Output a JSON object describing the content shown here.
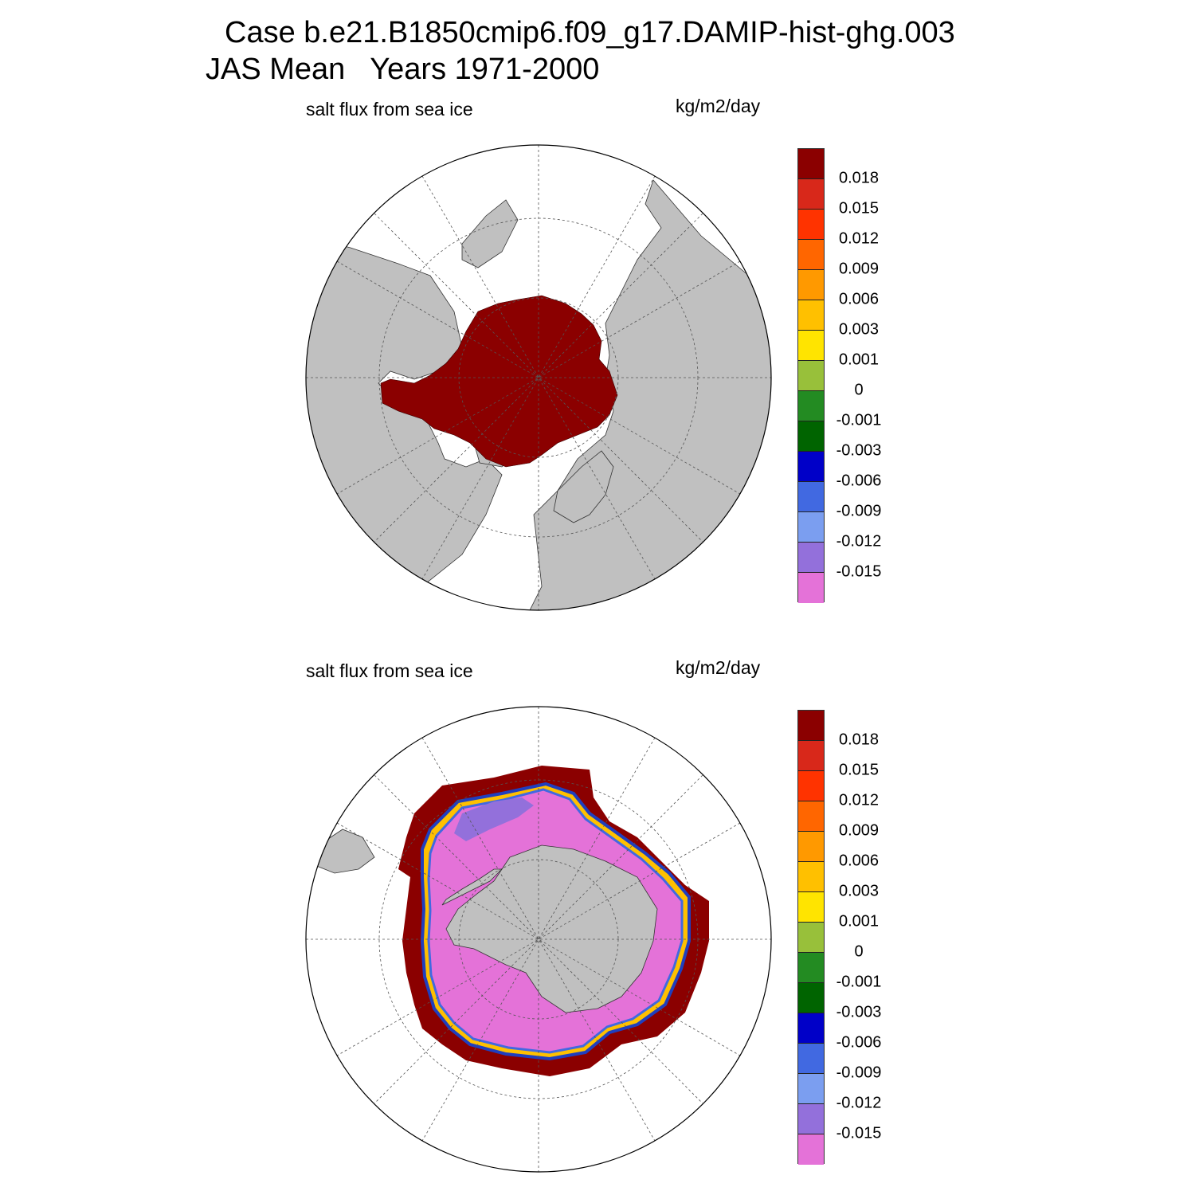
{
  "title": {
    "line1": "Case b.e21.B1850cmip6.f09_g17.DAMIP-hist-ghg.003",
    "line2": "JAS Mean   Years 1971-2000"
  },
  "panels": [
    {
      "hemisphere": "Northern Hemisphere",
      "variable": "salt flux from sea ice",
      "units": "kg/m2/day"
    },
    {
      "hemisphere": "Southern Hemisphere",
      "variable": "salt flux from sea ice",
      "units": "kg/m2/day"
    }
  ],
  "colorbar": {
    "labels": [
      "0.018",
      "0.015",
      "0.012",
      "0.009",
      "0.006",
      "0.003",
      "0.001",
      "0",
      "-0.001",
      "-0.003",
      "-0.006",
      "-0.009",
      "-0.012",
      "-0.015"
    ],
    "colors": [
      "#8b0000",
      "#d8281a",
      "#ff3300",
      "#ff6600",
      "#ff9900",
      "#ffc000",
      "#ffe400",
      "#98c03a",
      "#238b22",
      "#006400",
      "#0000c8",
      "#4169e1",
      "#7b9ef0",
      "#9370db",
      "#e472d8"
    ]
  },
  "map_colors": {
    "land": "#c0c0c0",
    "ocean": "#ffffff",
    "sea_ice_nh": "#8b0000",
    "sea_ice_sh_edge": "#8b0000",
    "sea_ice_sh_interior": "#e472d8"
  }
}
